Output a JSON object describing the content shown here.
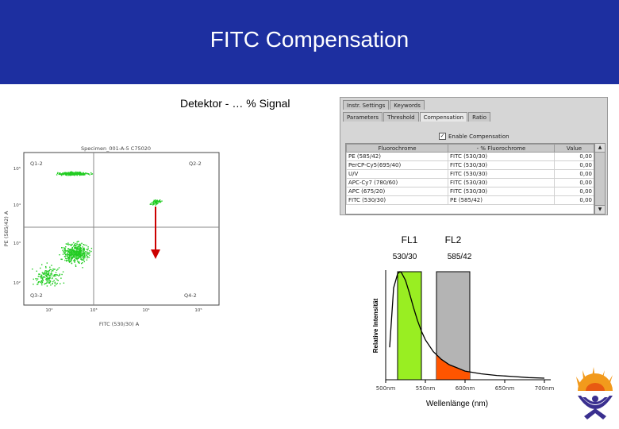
{
  "slide": {
    "title": "FITC Compensation",
    "subtitle": "Detektor - … % Signal"
  },
  "dialog": {
    "tabs_top": [
      "Instr. Settings",
      "Keywords"
    ],
    "tabs_second": [
      "Parameters",
      "Threshold",
      "Compensation",
      "Ratio"
    ],
    "active_tab": "Compensation",
    "enable_label": "Enable Compensation",
    "enable_checked": true,
    "columns": [
      "Fluorochrome",
      "- % Fluorochrome",
      "Value"
    ],
    "rows": [
      {
        "fluor": "PE (585/42)",
        "minus": "FITC (530/30)",
        "value": "0,00"
      },
      {
        "fluor": "PerCP-Cy5(695/40)",
        "minus": "FITC (530/30)",
        "value": "0,00"
      },
      {
        "fluor": "U/V",
        "minus": "FITC (530/30)",
        "value": "0,00"
      },
      {
        "fluor": "APC-Cy7 (780/60)",
        "minus": "FITC (530/30)",
        "value": "0,00"
      },
      {
        "fluor": "APC (675/20)",
        "minus": "FITC (530/30)",
        "value": "0,00"
      },
      {
        "fluor": "FITC (530/30)",
        "minus": "PE (585/42)",
        "value": "0,00"
      }
    ]
  },
  "dotplot": {
    "title": "Specimen_001-A-5 C75020",
    "xlabel": "FITC (530/30) A",
    "ylabel": "PE (585/42) A",
    "quadrants": [
      "Q1-2",
      "Q2-2",
      "Q3-2",
      "Q4-2"
    ],
    "x_ticks": [
      "10²",
      "10³",
      "10⁴",
      "10⁵"
    ],
    "y_ticks": [
      "10⁵",
      "10⁴",
      "10³",
      "10²"
    ],
    "dot_color": "#22cc22",
    "arrow_color": "#cc0000"
  },
  "chart_data": {
    "type": "area",
    "title": "",
    "xlabel": "Wellenlänge (nm)",
    "ylabel": "Relative Intensität",
    "x_ticks": [
      "500nm",
      "550nm",
      "600nm",
      "650nm",
      "700nm"
    ],
    "xlim": [
      500,
      700
    ],
    "ylim": [
      0,
      1
    ],
    "filters": [
      {
        "name": "FL1",
        "band": "530/30",
        "center": 530,
        "width": 30,
        "color": "#99ee22"
      },
      {
        "name": "FL2",
        "band": "585/42",
        "center": 585,
        "width": 42,
        "color": "#b4b4b4"
      }
    ],
    "series": [
      {
        "name": "",
        "x": [
          505,
          510,
          515,
          518,
          520,
          525,
          530,
          535,
          540,
          545,
          550,
          560,
          570,
          580,
          590,
          600,
          620,
          640,
          660,
          680,
          700
        ],
        "values": [
          0.3,
          0.85,
          0.98,
          1.0,
          0.99,
          0.92,
          0.8,
          0.67,
          0.55,
          0.45,
          0.37,
          0.26,
          0.19,
          0.14,
          0.11,
          0.08,
          0.055,
          0.04,
          0.03,
          0.02,
          0.015
        ]
      }
    ],
    "spillover_color": "#ff5500"
  }
}
